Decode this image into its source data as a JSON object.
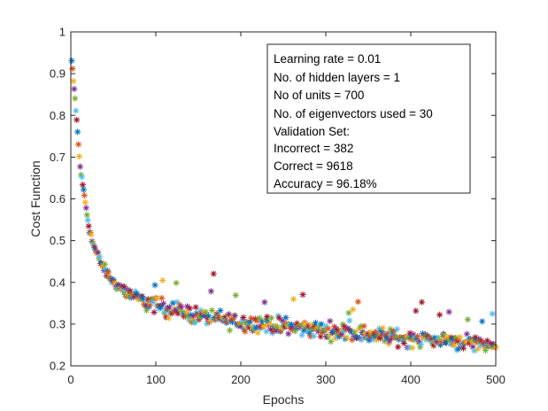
{
  "chart_data": {
    "type": "scatter",
    "marker": "asterisk",
    "xlabel": "Epochs",
    "ylabel": "Cost Function",
    "xlim": [
      0,
      500
    ],
    "ylim": [
      0.2,
      1
    ],
    "xticks": [
      "0",
      "100",
      "200",
      "300",
      "400",
      "500"
    ],
    "yticks": [
      "0.2",
      "0.3",
      "0.4",
      "0.5",
      "0.6",
      "0.7",
      "0.8",
      "0.9",
      "1"
    ],
    "grid": false,
    "annotation_position": "top-right",
    "annotation_lines": [
      "Learning rate = 0.01",
      "No. of hidden layers = 1",
      "No of units = 700",
      "No. of eigenvectors used = 30",
      "Validation Set:",
      "Incorrect = 382",
      "Correct = 9618",
      "Accuracy = 96.18%"
    ],
    "series_colors": [
      "#0072BD",
      "#D95319",
      "#EDB120",
      "#7E2F8E",
      "#77AC30",
      "#4DBEEE",
      "#A2142F"
    ],
    "epochs": 500,
    "curve_samples": [
      [
        1,
        0.93
      ],
      [
        3,
        0.88
      ],
      [
        5,
        0.84
      ],
      [
        8,
        0.76
      ],
      [
        10,
        0.7
      ],
      [
        12,
        0.66
      ],
      [
        15,
        0.62
      ],
      [
        18,
        0.58
      ],
      [
        20,
        0.55
      ],
      [
        25,
        0.5
      ],
      [
        30,
        0.47
      ],
      [
        35,
        0.45
      ],
      [
        40,
        0.43
      ],
      [
        50,
        0.4
      ],
      [
        60,
        0.385
      ],
      [
        70,
        0.37
      ],
      [
        80,
        0.36
      ],
      [
        100,
        0.345
      ],
      [
        120,
        0.335
      ],
      [
        150,
        0.32
      ],
      [
        200,
        0.305
      ],
      [
        250,
        0.295
      ],
      [
        300,
        0.285
      ],
      [
        350,
        0.275
      ],
      [
        400,
        0.265
      ],
      [
        450,
        0.26
      ],
      [
        500,
        0.25
      ]
    ]
  }
}
